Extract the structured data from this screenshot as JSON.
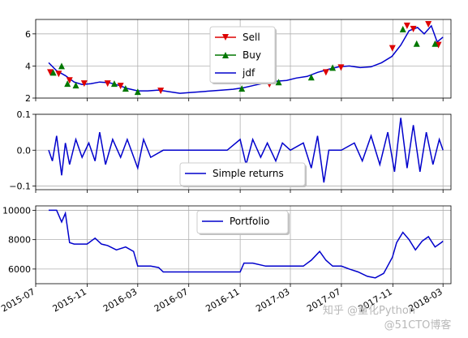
{
  "chart_data": [
    {
      "type": "line",
      "ylim": [
        2,
        6.9
      ],
      "yticks": [
        "2",
        "4",
        "6"
      ],
      "grid": true,
      "legend_position": "top-center",
      "series": [
        {
          "name": "jdf",
          "color": "#0000cc",
          "marker": "none",
          "x": [
            "2015-08-01",
            "2015-08-20",
            "2015-09-10",
            "2015-10-01",
            "2015-10-20",
            "2015-11-10",
            "2015-12-01",
            "2015-12-25",
            "2016-01-15",
            "2016-02-05",
            "2016-03-01",
            "2016-03-25",
            "2016-04-20",
            "2016-05-15",
            "2016-06-10",
            "2016-07-05",
            "2016-08-01",
            "2016-08-25",
            "2016-09-20",
            "2016-10-15",
            "2016-11-10",
            "2016-12-05",
            "2017-01-01",
            "2017-01-25",
            "2017-02-20",
            "2017-03-15",
            "2017-04-10",
            "2017-05-05",
            "2017-06-01",
            "2017-06-25",
            "2017-07-20",
            "2017-08-15",
            "2017-09-10",
            "2017-10-05",
            "2017-10-30",
            "2017-11-20",
            "2017-12-10",
            "2017-12-30",
            "2018-01-15",
            "2018-02-01",
            "2018-02-15",
            "2018-03-01"
          ],
          "y": [
            4.2,
            3.7,
            3.4,
            3.0,
            2.85,
            2.9,
            3.0,
            2.95,
            2.8,
            2.6,
            2.45,
            2.45,
            2.5,
            2.4,
            2.3,
            2.35,
            2.4,
            2.45,
            2.5,
            2.55,
            2.65,
            2.8,
            2.95,
            3.05,
            3.1,
            3.25,
            3.35,
            3.6,
            3.8,
            3.95,
            4.0,
            3.9,
            3.95,
            4.2,
            4.6,
            5.3,
            6.2,
            6.4,
            6.0,
            6.5,
            5.5,
            5.8
          ]
        },
        {
          "name": "Sell",
          "color": "#dd0000",
          "marker": "triangle-down",
          "x": [
            "2015-08-05",
            "2015-08-25",
            "2015-09-20",
            "2015-10-25",
            "2015-12-20",
            "2016-01-20",
            "2016-04-25",
            "2017-01-10",
            "2017-05-25",
            "2017-06-30",
            "2017-10-31",
            "2017-12-05",
            "2017-12-20",
            "2018-01-25",
            "2018-02-18"
          ],
          "y": [
            3.6,
            3.5,
            3.1,
            2.9,
            2.9,
            2.75,
            2.45,
            2.85,
            3.6,
            3.9,
            5.1,
            6.5,
            6.3,
            6.6,
            5.3
          ]
        },
        {
          "name": "Buy",
          "color": "#007700",
          "marker": "triangle-up",
          "x": [
            "2015-08-12",
            "2015-09-01",
            "2015-09-15",
            "2015-10-05",
            "2016-01-05",
            "2016-02-01",
            "2016-03-01",
            "2016-11-05",
            "2017-02-01",
            "2017-04-20",
            "2017-06-10",
            "2017-11-25",
            "2017-12-28",
            "2018-02-10"
          ],
          "y": [
            3.6,
            4.0,
            2.9,
            2.8,
            2.9,
            2.6,
            2.4,
            2.6,
            3.0,
            3.3,
            3.9,
            6.3,
            5.4,
            5.4
          ]
        }
      ]
    },
    {
      "type": "line",
      "ylim": [
        -0.11,
        0.1
      ],
      "yticks": [
        "−0.1",
        "0.0",
        "0.1"
      ],
      "grid": true,
      "legend_position": "bottom-center",
      "series": [
        {
          "name": "Simple returns",
          "color": "#0000cc",
          "x": [
            "2015-08-01",
            "2015-08-10",
            "2015-08-20",
            "2015-09-01",
            "2015-09-10",
            "2015-09-20",
            "2015-10-05",
            "2015-10-20",
            "2015-11-05",
            "2015-11-20",
            "2015-12-01",
            "2015-12-15",
            "2016-01-01",
            "2016-01-20",
            "2016-02-05",
            "2016-03-01",
            "2016-03-15",
            "2016-04-01",
            "2016-05-01",
            "2016-06-01",
            "2016-07-01",
            "2016-08-01",
            "2016-09-01",
            "2016-10-01",
            "2016-11-01",
            "2016-11-15",
            "2016-12-01",
            "2016-12-20",
            "2017-01-05",
            "2017-01-25",
            "2017-02-10",
            "2017-03-01",
            "2017-04-01",
            "2017-04-20",
            "2017-05-05",
            "2017-05-20",
            "2017-06-01",
            "2017-07-01",
            "2017-08-01",
            "2017-08-20",
            "2017-09-10",
            "2017-10-01",
            "2017-10-20",
            "2017-11-05",
            "2017-11-20",
            "2017-12-05",
            "2017-12-20",
            "2018-01-05",
            "2018-01-20",
            "2018-02-05",
            "2018-02-20",
            "2018-03-01"
          ],
          "y": [
            0.0,
            -0.03,
            0.04,
            -0.07,
            0.02,
            -0.04,
            0.03,
            -0.02,
            0.02,
            -0.03,
            0.05,
            -0.04,
            0.03,
            -0.02,
            0.03,
            -0.05,
            0.03,
            -0.02,
            0.0,
            0.0,
            0.0,
            0.0,
            0.0,
            0.0,
            0.03,
            -0.04,
            0.03,
            -0.02,
            0.02,
            -0.03,
            0.02,
            0.0,
            0.02,
            -0.05,
            0.04,
            -0.09,
            0.0,
            0.0,
            0.02,
            -0.03,
            0.04,
            -0.04,
            0.05,
            -0.06,
            0.09,
            -0.05,
            0.07,
            -0.06,
            0.05,
            -0.04,
            0.03,
            0.0
          ]
        }
      ]
    },
    {
      "type": "line",
      "ylim": [
        5000,
        10300
      ],
      "yticks": [
        "6000",
        "8000",
        "10000"
      ],
      "grid": true,
      "legend_position": "top-center",
      "x_axis": {
        "range": [
          "2015-07-01",
          "2018-03-20"
        ],
        "tick_labels": [
          "2015-07",
          "2015-11",
          "2016-03",
          "2016-07",
          "2016-11",
          "2017-03",
          "2017-07",
          "2017-11",
          "2018-03"
        ]
      },
      "series": [
        {
          "name": "Portfolio",
          "color": "#0000cc",
          "x": [
            "2015-08-01",
            "2015-08-20",
            "2015-09-01",
            "2015-09-10",
            "2015-09-20",
            "2015-10-01",
            "2015-10-20",
            "2015-11-01",
            "2015-11-20",
            "2015-12-05",
            "2015-12-20",
            "2016-01-10",
            "2016-02-01",
            "2016-02-20",
            "2016-03-01",
            "2016-03-15",
            "2016-04-01",
            "2016-04-20",
            "2016-05-01",
            "2016-06-01",
            "2016-07-01",
            "2016-08-01",
            "2016-09-01",
            "2016-10-01",
            "2016-11-01",
            "2016-11-10",
            "2016-12-01",
            "2017-01-01",
            "2017-01-20",
            "2017-02-10",
            "2017-03-01",
            "2017-04-01",
            "2017-04-20",
            "2017-05-10",
            "2017-05-25",
            "2017-06-10",
            "2017-07-01",
            "2017-07-20",
            "2017-08-10",
            "2017-09-01",
            "2017-09-20",
            "2017-10-10",
            "2017-10-31",
            "2017-11-10",
            "2017-11-25",
            "2017-12-10",
            "2017-12-25",
            "2018-01-10",
            "2018-01-25",
            "2018-02-10",
            "2018-02-25",
            "2018-03-01"
          ],
          "y": [
            10000,
            10000,
            9200,
            9800,
            7800,
            7700,
            7700,
            7700,
            8100,
            7700,
            7600,
            7300,
            7500,
            7200,
            6200,
            6200,
            6200,
            6100,
            5800,
            5800,
            5800,
            5800,
            5800,
            5800,
            5800,
            6400,
            6400,
            6200,
            6200,
            6200,
            6200,
            6200,
            6600,
            7200,
            6600,
            6200,
            6200,
            6000,
            5800,
            5500,
            5400,
            5700,
            6800,
            7800,
            8500,
            8000,
            7300,
            7900,
            8200,
            7500,
            7800,
            7900
          ]
        }
      ]
    }
  ],
  "watermark": {
    "text": "知乎 @量化Python\n@51CTO博客"
  }
}
